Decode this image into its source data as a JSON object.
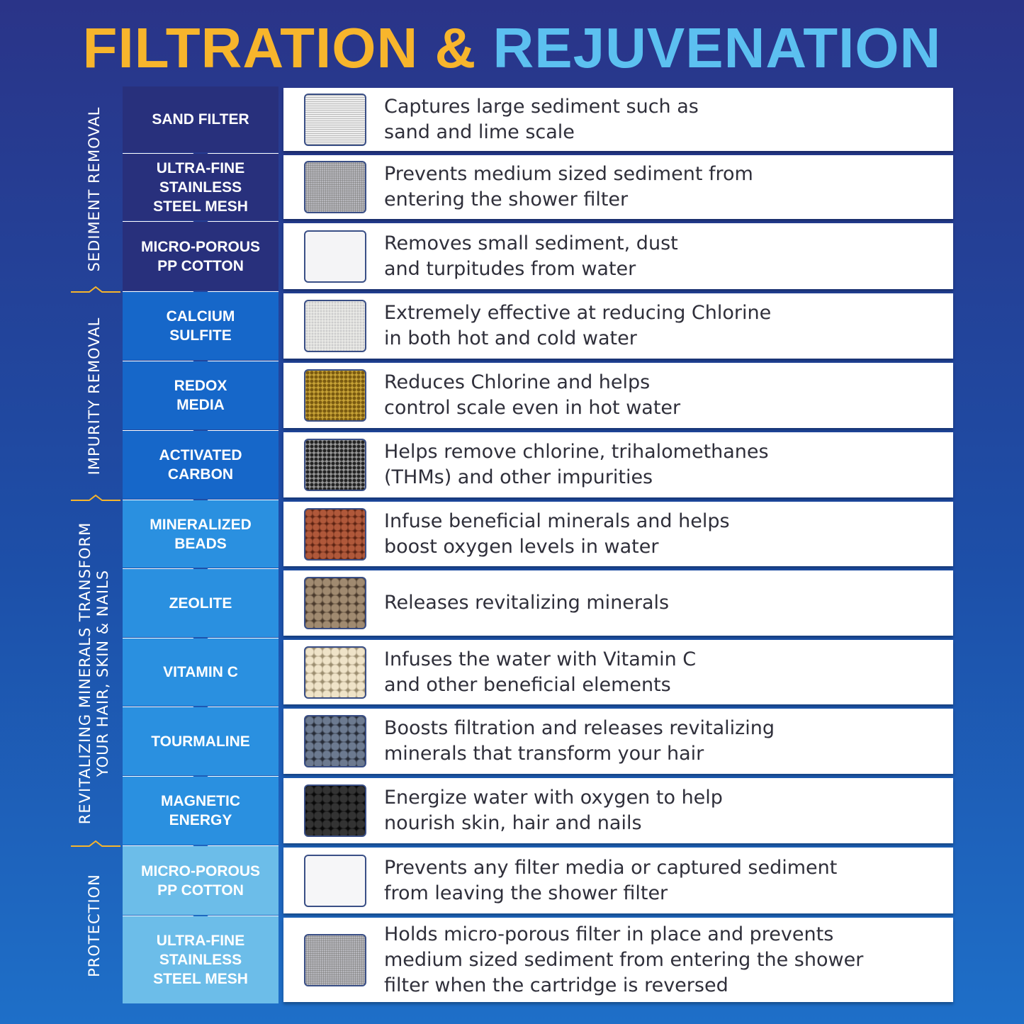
{
  "header": {
    "title_part1": "FILTRATION &",
    "title_part2": "REJUVENATION"
  },
  "groups": [
    {
      "label": "SEDIMENT REMOVAL",
      "layers": [
        {
          "name": "SAND FILTER",
          "description": "Captures large sediment such as\nsand and lime scale"
        },
        {
          "name": "ULTRA-FINE\nSTAINLESS\nSTEEL MESH",
          "description": "Prevents medium sized sediment from\nentering the shower filter"
        },
        {
          "name": "MICRO-POROUS\nPP COTTON",
          "description": "Removes small sediment, dust\nand turpitudes from water"
        }
      ]
    },
    {
      "label": "IMPURITY REMOVAL",
      "layers": [
        {
          "name": "CALCIUM\nSULFITE",
          "description": "Extremely effective at reducing Chlorine\nin both hot and cold water"
        },
        {
          "name": "REDOX\nMEDIA",
          "description": "Reduces Chlorine and helps\ncontrol scale even in hot water"
        },
        {
          "name": "ACTIVATED\nCARBON",
          "description": "Helps remove chlorine, trihalomethanes\n(THMs) and other impurities"
        }
      ]
    },
    {
      "label": "REVITALIZING MINERALS TRANSFORM\nYOUR HAIR, SKIN & NAILS",
      "layers": [
        {
          "name": "MINERALIZED\nBEADS",
          "description": "Infuse beneficial minerals and helps\nboost oxygen levels in water"
        },
        {
          "name": "ZEOLITE",
          "description": "Releases revitalizing minerals"
        },
        {
          "name": "VITAMIN C",
          "description": "Infuses the water with Vitamin C\nand other beneficial elements"
        },
        {
          "name": "TOURMALINE",
          "description": "Boosts filtration and releases revitalizing\nminerals that transform your hair"
        },
        {
          "name": "MAGNETIC\nENERGY",
          "description": "Energize water with oxygen to help\nnourish skin, hair and nails"
        }
      ]
    },
    {
      "label": "PROTECTION",
      "layers": [
        {
          "name": "MICRO-POROUS\nPP COTTON",
          "description": "Prevents any filter media or captured sediment\nfrom leaving the shower filter"
        },
        {
          "name": "ULTRA-FINE\nSTAINLESS\nSTEEL MESH",
          "description": "Holds micro-porous filter in place and prevents\nmedium sized sediment from entering the shower\nfilter when the cartridge is reversed"
        }
      ]
    }
  ]
}
